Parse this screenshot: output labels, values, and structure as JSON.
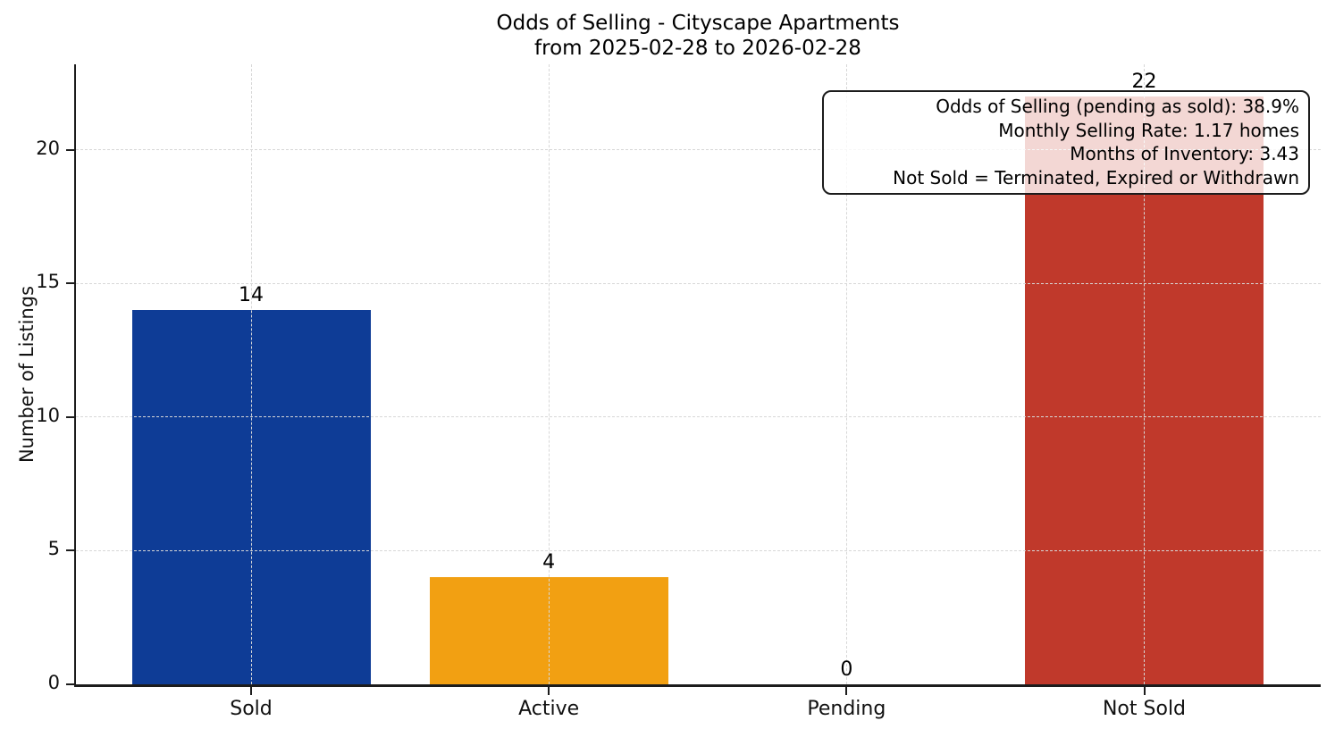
{
  "chart_data": {
    "type": "bar",
    "title": "Odds of Selling - Cityscape Apartments",
    "subtitle": "from 2025-02-28 to 2026-02-28",
    "ylabel": "Number of Listings",
    "xlabel": "",
    "categories": [
      "Sold",
      "Active",
      "Pending",
      "Not Sold"
    ],
    "values": [
      14,
      4,
      0,
      22
    ],
    "bar_labels": [
      "14",
      "4",
      "0",
      "22"
    ],
    "bar_colors": [
      "#0e3c96",
      "#f2a012",
      "#808080",
      "#c0392b"
    ],
    "yticks": [
      0,
      5,
      10,
      15,
      20
    ],
    "ylim": [
      0,
      23.2
    ],
    "grid": {
      "visible": true,
      "style": "dashed",
      "color": "#d7d7d7",
      "above_bars": true
    },
    "legend": {
      "visible": false
    },
    "annotation": {
      "lines": [
        "Odds of Selling (pending as sold): 38.9%",
        "Monthly Selling Rate: 1.17 homes",
        "Months of Inventory: 3.43",
        "Not Sold = Terminated, Expired or Withdrawn"
      ]
    }
  }
}
